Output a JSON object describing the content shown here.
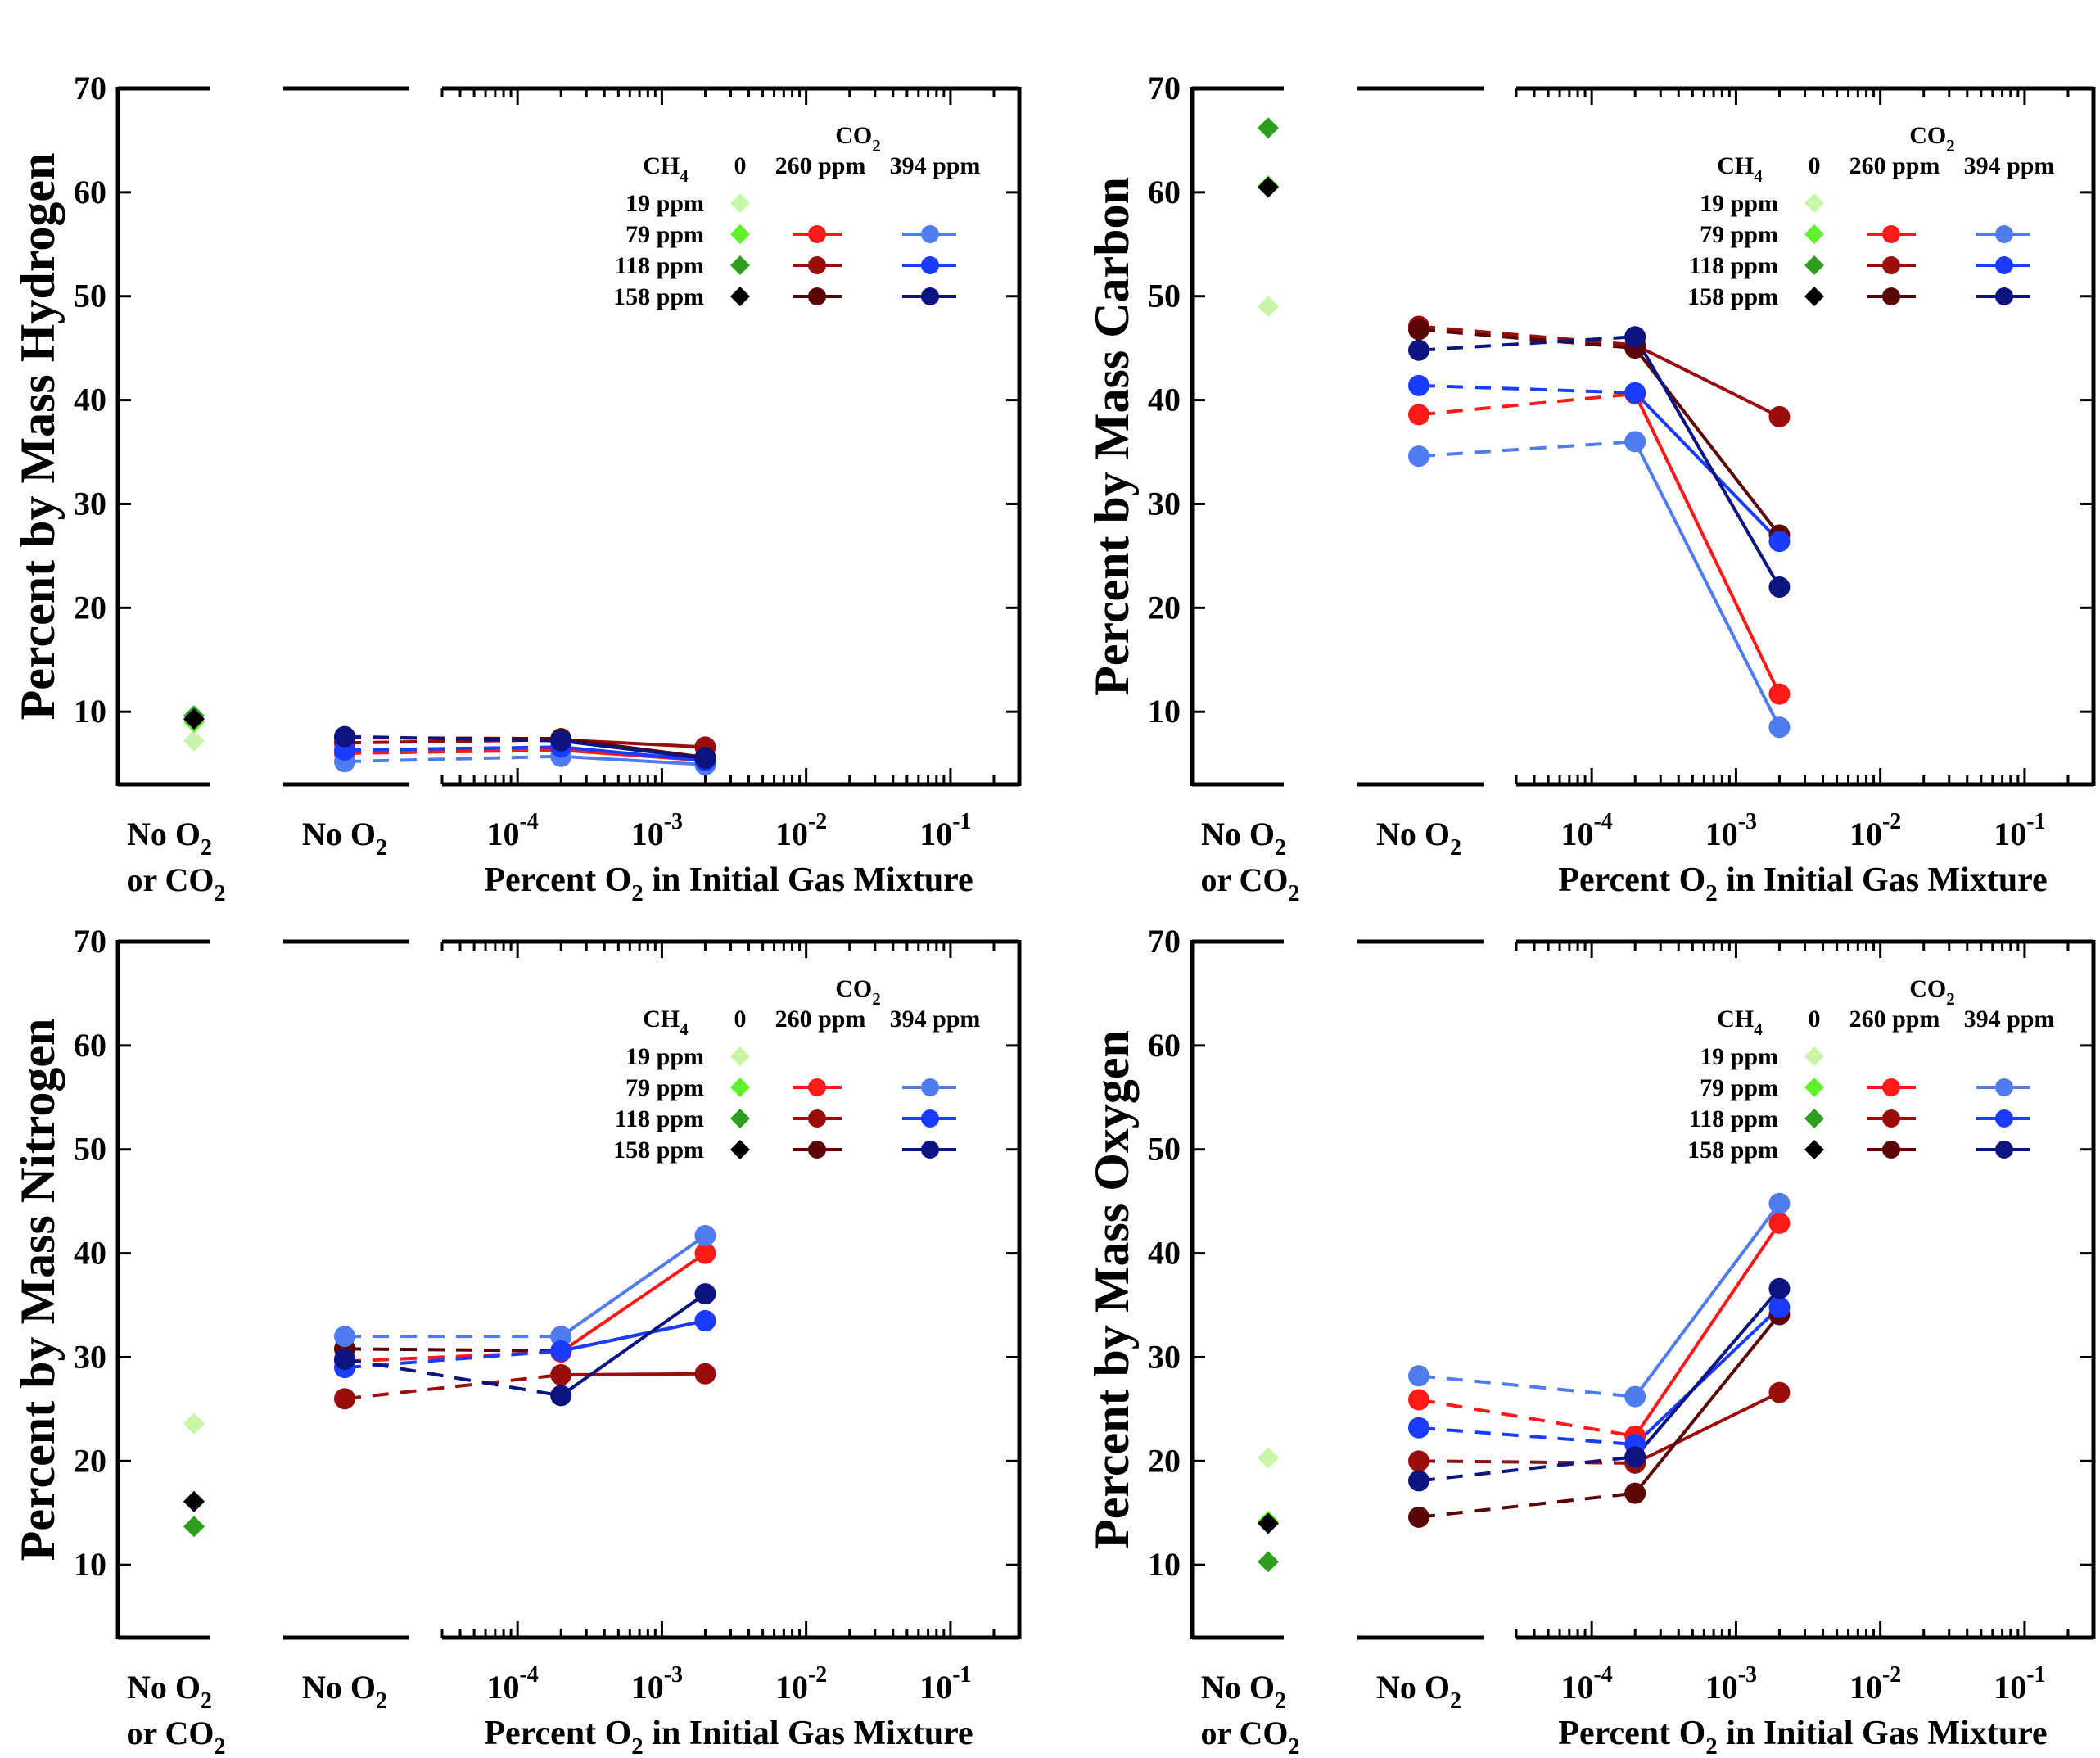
{
  "figure": {
    "xlabel_main": "Percent O",
    "xlabel_sub": "2",
    "xlabel_rest": " in Initial Gas Mixture",
    "category_noo2_label": "No O",
    "category_noo2_sub": "2",
    "category_none_line1": "No O",
    "category_none_line1_sub": "2",
    "category_none_line2": "or CO",
    "category_none_line2_sub": "2",
    "yticks": [
      10,
      20,
      30,
      40,
      50,
      60,
      70
    ],
    "xtick_labels": [
      {
        "base": "10",
        "exp": "-4"
      },
      {
        "base": "10",
        "exp": "-3"
      },
      {
        "base": "10",
        "exp": "-2"
      },
      {
        "base": "10",
        "exp": "-1"
      }
    ],
    "legend": {
      "co2_header": "CO",
      "co2_sub": "2",
      "ch4_header": "CH",
      "ch4_sub": "4",
      "col_0": "0",
      "col_260": "260 ppm",
      "col_394": "394 ppm",
      "rows": [
        "19 ppm",
        "79 ppm",
        "118 ppm",
        "158 ppm"
      ]
    }
  },
  "colors": {
    "diamond_19": "#c8f5a8",
    "diamond_79": "#5ef02a",
    "diamond_118": "#2e9e1e",
    "diamond_158": "#000000",
    "red_79": "#ff1a1a",
    "red_118": "#990d0d",
    "red_158": "#5a0606",
    "blue_79": "#4f7df0",
    "blue_118": "#1a3cff",
    "blue_158": "#0b1480"
  },
  "chart_data": [
    {
      "type": "scatter",
      "panel": "top-left",
      "ylabel": "Percent by Mass Hydrogen",
      "ylim": [
        3,
        70
      ],
      "xaxis": "log",
      "xlim": [
        3e-05,
        0.3
      ],
      "categories": [
        "No O2 or CO2",
        "No O2"
      ],
      "no_o2_no_co2": [
        {
          "ch4": "19 ppm",
          "y": 7.2
        },
        {
          "ch4": "79 ppm",
          "y": 9.0
        },
        {
          "ch4": "118 ppm",
          "y": 9.6
        },
        {
          "ch4": "158 ppm",
          "y": 9.3
        }
      ],
      "series": [
        {
          "name": "260 ppm CO2, 79 ppm CH4",
          "no_o2": 6.0,
          "o2": [
            0.0002,
            0.002
          ],
          "values": [
            6.3,
            5.3
          ]
        },
        {
          "name": "260 ppm CO2, 118 ppm CH4",
          "no_o2": 7.0,
          "o2": [
            0.0002,
            0.002
          ],
          "values": [
            7.3,
            6.6
          ]
        },
        {
          "name": "260 ppm CO2, 158 ppm CH4",
          "no_o2": 7.5,
          "o2": [
            0.0002,
            0.002
          ],
          "values": [
            7.4,
            5.6
          ]
        },
        {
          "name": "394 ppm CO2, 79 ppm CH4",
          "no_o2": 5.2,
          "o2": [
            0.0002,
            0.002
          ],
          "values": [
            5.7,
            4.9
          ]
        },
        {
          "name": "394 ppm CO2, 118 ppm CH4",
          "no_o2": 6.3,
          "o2": [
            0.0002,
            0.002
          ],
          "values": [
            6.6,
            5.3
          ]
        },
        {
          "name": "394 ppm CO2, 158 ppm CH4",
          "no_o2": 7.6,
          "o2": [
            0.0002,
            0.002
          ],
          "values": [
            7.2,
            5.5
          ]
        }
      ]
    },
    {
      "type": "scatter",
      "panel": "top-right",
      "ylabel": "Percent by Mass Carbon",
      "ylim": [
        3,
        70
      ],
      "xaxis": "log",
      "xlim": [
        3e-05,
        0.3
      ],
      "categories": [
        "No O2 or CO2",
        "No O2"
      ],
      "no_o2_no_co2": [
        {
          "ch4": "19 ppm",
          "y": 49.0
        },
        {
          "ch4": "79 ppm",
          "y": 60.6
        },
        {
          "ch4": "118 ppm",
          "y": 66.2
        },
        {
          "ch4": "158 ppm",
          "y": 60.5
        }
      ],
      "series": [
        {
          "name": "260 ppm CO2, 79 ppm CH4",
          "no_o2": 38.6,
          "o2": [
            0.0002,
            0.002
          ],
          "values": [
            40.6,
            11.7
          ]
        },
        {
          "name": "260 ppm CO2, 118 ppm CH4",
          "no_o2": 47.1,
          "o2": [
            0.0002,
            0.002
          ],
          "values": [
            45.3,
            38.4
          ]
        },
        {
          "name": "260 ppm CO2, 158 ppm CH4",
          "no_o2": 46.8,
          "o2": [
            0.0002,
            0.002
          ],
          "values": [
            45.0,
            27.0
          ]
        },
        {
          "name": "394 ppm CO2, 79 ppm CH4",
          "no_o2": 34.6,
          "o2": [
            0.0002,
            0.002
          ],
          "values": [
            36.0,
            8.5
          ]
        },
        {
          "name": "394 ppm CO2, 118 ppm CH4",
          "no_o2": 41.4,
          "o2": [
            0.0002,
            0.002
          ],
          "values": [
            40.7,
            26.4
          ]
        },
        {
          "name": "394 ppm CO2, 158 ppm CH4",
          "no_o2": 44.8,
          "o2": [
            0.0002,
            0.002
          ],
          "values": [
            46.1,
            22.0
          ]
        }
      ]
    },
    {
      "type": "scatter",
      "panel": "bottom-left",
      "ylabel": "Percent by Mass Nitrogen",
      "ylim": [
        3,
        70
      ],
      "xaxis": "log",
      "xlim": [
        3e-05,
        0.3
      ],
      "categories": [
        "No O2 or CO2",
        "No O2"
      ],
      "no_o2_no_co2": [
        {
          "ch4": "19 ppm",
          "y": 23.6
        },
        {
          "ch4": "79 ppm",
          "y": 16.1
        },
        {
          "ch4": "118 ppm",
          "y": 13.7
        },
        {
          "ch4": "158 ppm",
          "y": 16.1
        }
      ],
      "series": [
        {
          "name": "260 ppm CO2, 79 ppm CH4",
          "no_o2": 29.6,
          "o2": [
            0.0002,
            0.002
          ],
          "values": [
            30.5,
            40.0
          ]
        },
        {
          "name": "260 ppm CO2, 118 ppm CH4",
          "no_o2": 26.0,
          "o2": [
            0.0002,
            0.002
          ],
          "values": [
            28.3,
            28.4
          ]
        },
        {
          "name": "260 ppm CO2, 158 ppm CH4",
          "no_o2": 30.8,
          "o2": [
            0.0002,
            0.002
          ],
          "values": [
            30.6,
            33.5
          ]
        },
        {
          "name": "394 ppm CO2, 79 ppm CH4",
          "no_o2": 32.0,
          "o2": [
            0.0002,
            0.002
          ],
          "values": [
            32.0,
            41.7
          ]
        },
        {
          "name": "394 ppm CO2, 118 ppm CH4",
          "no_o2": 29.0,
          "o2": [
            0.0002,
            0.002
          ],
          "values": [
            30.6,
            33.5
          ]
        },
        {
          "name": "394 ppm CO2, 158 ppm CH4",
          "no_o2": 29.8,
          "o2": [
            0.0002,
            0.002
          ],
          "values": [
            26.3,
            36.1
          ]
        }
      ]
    },
    {
      "type": "scatter",
      "panel": "bottom-right",
      "ylabel": "Percent by Mass Oxygen",
      "ylim": [
        3,
        70
      ],
      "xaxis": "log",
      "xlim": [
        3e-05,
        0.3
      ],
      "categories": [
        "No O2 or CO2",
        "No O2"
      ],
      "no_o2_no_co2": [
        {
          "ch4": "19 ppm",
          "y": 20.3
        },
        {
          "ch4": "79 ppm",
          "y": 14.2
        },
        {
          "ch4": "118 ppm",
          "y": 10.3
        },
        {
          "ch4": "158 ppm",
          "y": 14.0
        }
      ],
      "series": [
        {
          "name": "260 ppm CO2, 79 ppm CH4",
          "no_o2": 25.9,
          "o2": [
            0.0002,
            0.002
          ],
          "values": [
            22.4,
            42.9
          ]
        },
        {
          "name": "260 ppm CO2, 118 ppm CH4",
          "no_o2": 20.0,
          "o2": [
            0.0002,
            0.002
          ],
          "values": [
            19.8,
            26.6
          ]
        },
        {
          "name": "260 ppm CO2, 158 ppm CH4",
          "no_o2": 14.6,
          "o2": [
            0.0002,
            0.002
          ],
          "values": [
            16.9,
            34.1
          ]
        },
        {
          "name": "394 ppm CO2, 79 ppm CH4",
          "no_o2": 28.2,
          "o2": [
            0.0002,
            0.002
          ],
          "values": [
            26.2,
            44.8
          ]
        },
        {
          "name": "394 ppm CO2, 118 ppm CH4",
          "no_o2": 23.2,
          "o2": [
            0.0002,
            0.002
          ],
          "values": [
            21.6,
            34.8
          ]
        },
        {
          "name": "394 ppm CO2, 158 ppm CH4",
          "no_o2": 18.1,
          "o2": [
            0.0002,
            0.002
          ],
          "values": [
            20.4,
            36.6
          ]
        }
      ]
    }
  ]
}
